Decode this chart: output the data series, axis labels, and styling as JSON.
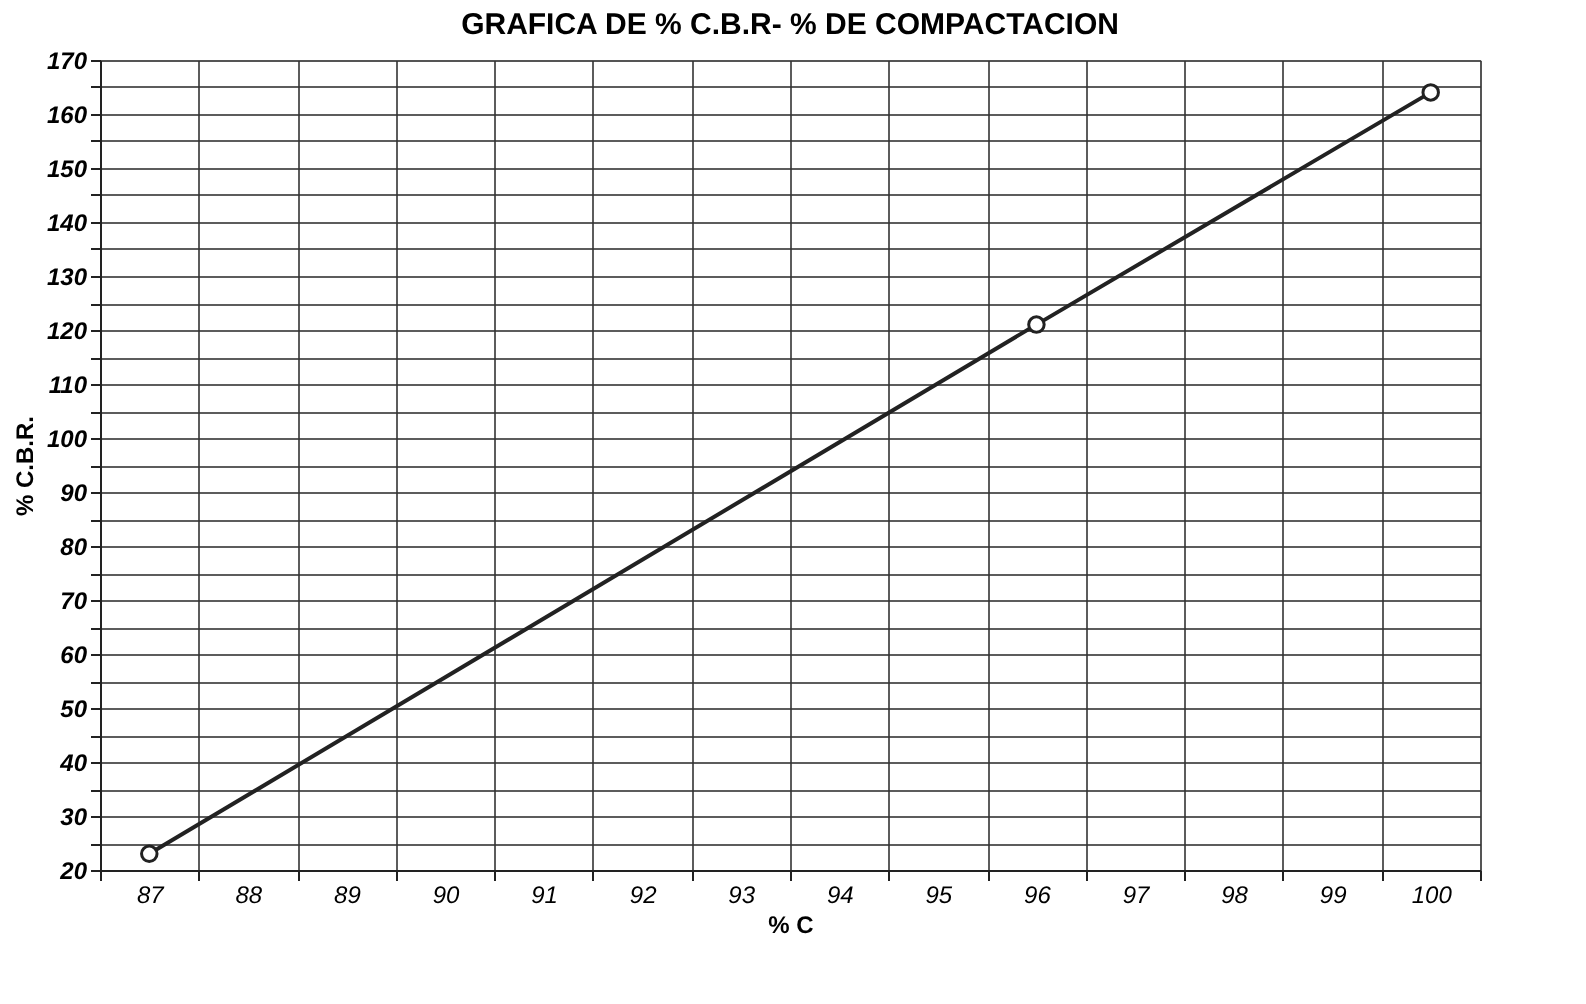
{
  "chart_data": {
    "type": "line",
    "title": "GRAFICA DE % C.B.R- % DE COMPACTACION",
    "xlabel": "% C",
    "ylabel": "% C.B.R.",
    "categories": [
      "87",
      "88",
      "89",
      "90",
      "91",
      "92",
      "93",
      "94",
      "95",
      "96",
      "97",
      "98",
      "99",
      "100"
    ],
    "series": [
      {
        "color": "#222222",
        "values": [
          23,
          null,
          null,
          null,
          null,
          null,
          null,
          null,
          null,
          121,
          null,
          null,
          null,
          164
        ]
      }
    ],
    "ylim": [
      20,
      170
    ],
    "yticks": [
      20,
      {
        "value": 25,
        "label": null
      },
      30,
      {
        "value": 35,
        "label": null
      },
      40,
      {
        "value": 45,
        "label": null
      },
      50,
      {
        "value": 55,
        "label": null
      },
      60,
      {
        "value": 65,
        "label": null
      },
      70,
      {
        "value": 75,
        "label": null
      },
      80,
      {
        "value": 85,
        "label": null
      },
      90,
      {
        "value": 95,
        "label": null
      },
      100,
      {
        "value": 105,
        "label": null
      },
      110,
      {
        "value": 115,
        "label": null
      },
      120,
      {
        "value": 125,
        "label": null
      },
      130,
      {
        "value": 135,
        "label": null
      },
      140,
      {
        "value": 145,
        "label": null
      },
      150,
      {
        "value": 155,
        "label": null
      },
      160,
      {
        "value": 165,
        "label": null
      },
      170
    ],
    "grid": true,
    "marker": "circle",
    "line_style": "solid"
  }
}
